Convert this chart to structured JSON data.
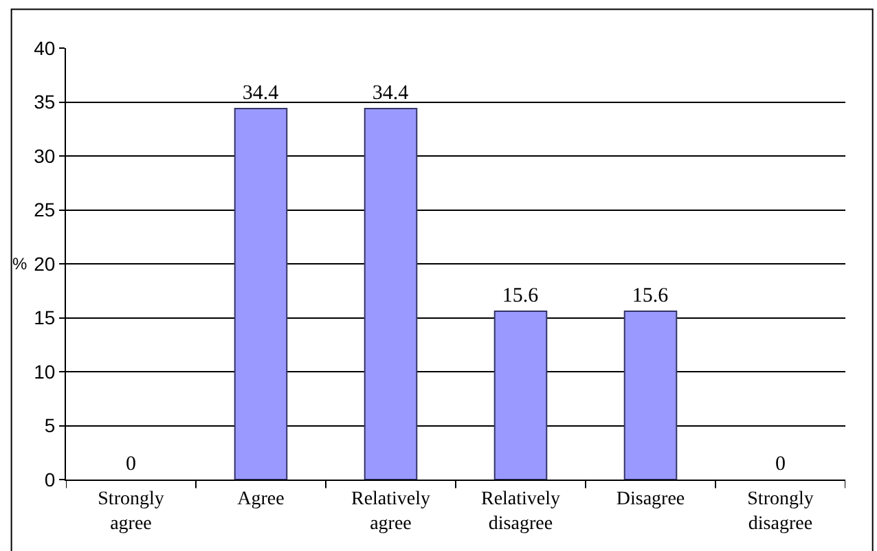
{
  "chart_data": {
    "type": "bar",
    "ylabel": "%",
    "categories": [
      "Strongly agree",
      "Agree",
      "Relatively agree",
      "Relatively disagree",
      "Disagree",
      "Strongly disagree"
    ],
    "values": [
      0,
      34.4,
      34.4,
      15.6,
      15.6,
      0
    ],
    "color": "#9999ff",
    "ylim": [
      0,
      40
    ],
    "yticks": [
      0,
      5,
      10,
      15,
      20,
      25,
      30,
      35,
      40
    ],
    "grid": "y",
    "data_labels": true
  }
}
